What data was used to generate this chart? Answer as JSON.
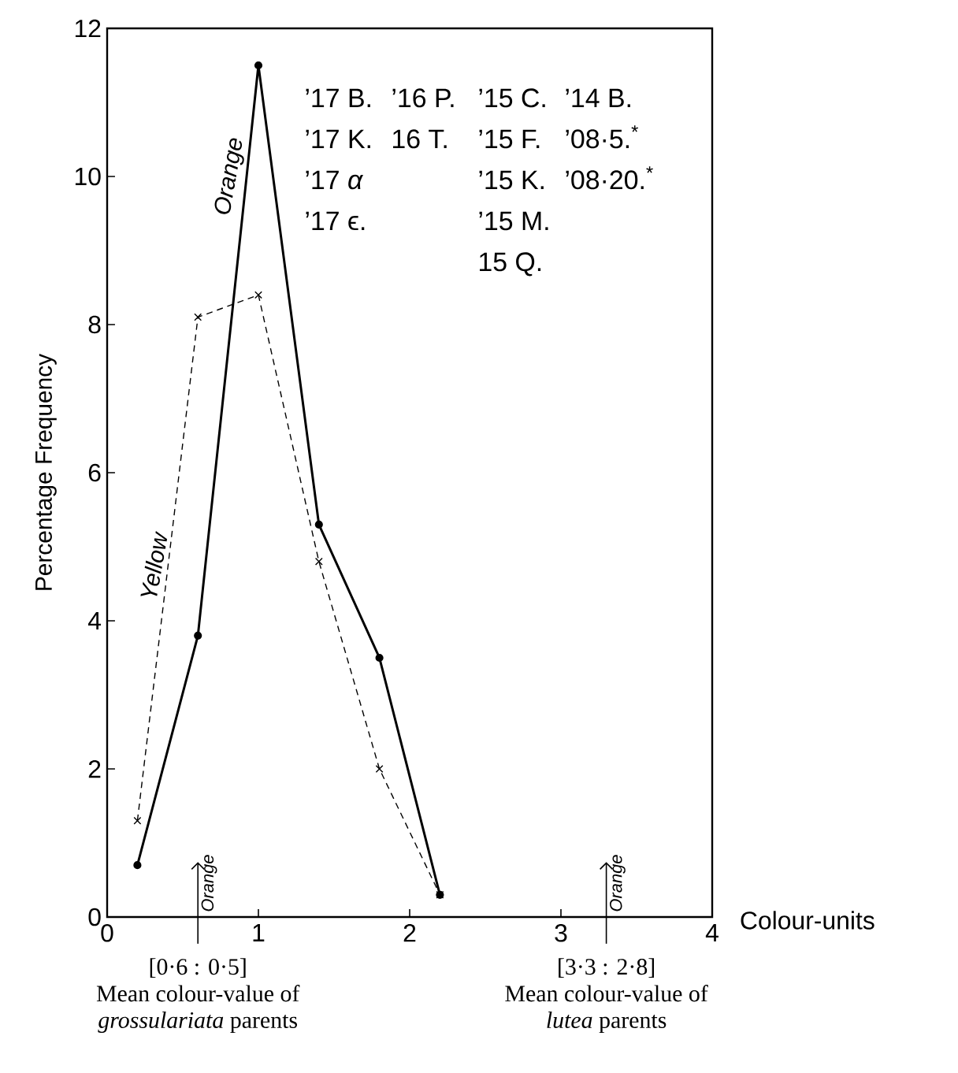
{
  "chart_data": {
    "type": "line",
    "xlabel": "Colour-units",
    "ylabel": "Percentage Frequency",
    "x": [
      0.2,
      0.6,
      1.0,
      1.4,
      1.8,
      2.2
    ],
    "series": [
      {
        "name": "Orange",
        "color": "#000000",
        "marker": "circle",
        "line_style": "solid",
        "values": [
          0.7,
          3.8,
          11.5,
          5.3,
          3.5,
          0.3
        ]
      },
      {
        "name": "Yellow",
        "color": "#000000",
        "marker": "cross",
        "line_style": "dashed",
        "values": [
          1.3,
          8.1,
          8.4,
          4.8,
          2.0,
          0.3
        ]
      }
    ],
    "xlim": [
      0,
      4
    ],
    "xticks": [
      0,
      1,
      2,
      3,
      4
    ],
    "ylim": [
      0,
      12
    ],
    "yticks": [
      0,
      2,
      4,
      6,
      8,
      10,
      12
    ],
    "grid": false,
    "legend": false,
    "ref_lines": [
      {
        "axis": "x",
        "value": 0.6,
        "label": "Orange"
      },
      {
        "axis": "x",
        "value": 3.3,
        "label": "Orange"
      }
    ],
    "annotations": [
      "[0·6 : 0·5]",
      "Mean colour-value of",
      "*grossulariata* parents",
      "[3·3 : 2·8]",
      "Mean colour-value of",
      "*lutea* parents",
      "’17 B.",
      "’17 K.",
      "’17 *α*",
      "’17 ϵ.",
      "’16 P.",
      "16 T.",
      "’15 C.",
      "’15 F.",
      "’15 K.",
      "’15 M.",
      "15 Q.",
      "’14 B.",
      "’08·5.$^{*}$",
      "’08·20.$^{*}$"
    ]
  }
}
